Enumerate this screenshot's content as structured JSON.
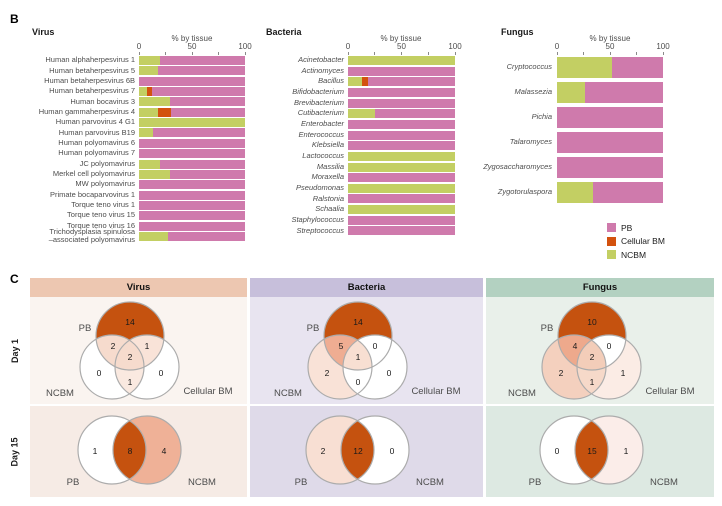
{
  "colors": {
    "PB": "#CF7AAC",
    "Cellular BM": "#D3520E",
    "NCBM": "#C3CF63",
    "venn_orange": "#C5520F",
    "venn_stroke": "#ACACAC"
  },
  "panel_b": {
    "label": "B",
    "legend": {
      "items": [
        {
          "label": "PB",
          "color": "#CF7AAC"
        },
        {
          "label": "Cellular BM",
          "color": "#D3520E"
        },
        {
          "label": "NCBM",
          "color": "#C3CF63"
        }
      ]
    }
  },
  "panel_c": {
    "label": "C",
    "row_labels": [
      "Day 1",
      "Day 15"
    ],
    "columns": [
      {
        "title": "Virus",
        "header_color": "#EDC7B1",
        "day1_bg": "#FAF4F0",
        "day15_bg": "#F6EBE5"
      },
      {
        "title": "Bacteria",
        "header_color": "#C7BFDB",
        "day1_bg": "#E8E4F0",
        "day15_bg": "#DFDAE9"
      },
      {
        "title": "Fungus",
        "header_color": "#B3D1C1",
        "day1_bg": "#E9F0EA",
        "day15_bg": "#DDE9E2"
      }
    ]
  },
  "chart_data": [
    {
      "type": "bar",
      "stacked": true,
      "orientation": "horizontal",
      "title": "Virus",
      "axis_title": "% by tissue",
      "xlim": [
        0,
        100
      ],
      "ticks": [
        "0",
        "50",
        "100"
      ],
      "categories": [
        "Human alphaherpesvirus 1",
        "Human betaherpesvirus 5",
        "Human betaherpesvirus 6B",
        "Human betaherpesvirus 7",
        "Human bocavirus 3",
        "Human gammaherpesvirus 4",
        "Human parvovirus 4 G1",
        "Human parvovirus B19",
        "Human polyomavirus 6",
        "Human polyomavirus 7",
        "JC polyomavirus",
        "Merkel cell polyomavirus",
        "MW polyomavirus",
        "Primate bocaparvovirus 1",
        "Torque teno virus 1",
        "Torque teno virus 15",
        "Torque teno virus 16",
        "Trichodysplasia spinulosa\n–associated polyomavirus"
      ],
      "series": [
        {
          "name": "NCBM",
          "values": [
            20,
            18,
            0,
            8,
            29,
            18,
            100,
            13,
            0,
            0,
            20,
            29,
            0,
            0,
            0,
            0,
            0,
            27
          ]
        },
        {
          "name": "Cellular BM",
          "values": [
            0,
            0,
            0,
            4,
            0,
            12,
            0,
            0,
            0,
            0,
            0,
            0,
            0,
            0,
            0,
            0,
            0,
            0
          ]
        },
        {
          "name": "PB",
          "values": [
            80,
            82,
            100,
            88,
            71,
            70,
            0,
            87,
            100,
            100,
            80,
            71,
            100,
            100,
            100,
            100,
            100,
            73
          ]
        }
      ]
    },
    {
      "type": "bar",
      "stacked": true,
      "orientation": "horizontal",
      "title": "Bacteria",
      "axis_title": "% by tissue",
      "xlim": [
        0,
        100
      ],
      "ticks": [
        "0",
        "50",
        "100"
      ],
      "categories": [
        "Acinetobacter",
        "Actinomyces",
        "Bacillus",
        "Bifidobacterium",
        "Brevibacterium",
        "Cutibacterium",
        "Enterobacter",
        "Enterococcus",
        "Klebsiella",
        "Lactococcus",
        "Massilia",
        "Moraxella",
        "Pseudomonas",
        "Ralstonia",
        "Schaalia",
        "Staphylococcus",
        "Streptococcus"
      ],
      "series": [
        {
          "name": "NCBM",
          "values": [
            100,
            0,
            13,
            0,
            0,
            25,
            0,
            0,
            0,
            100,
            100,
            0,
            100,
            0,
            100,
            0,
            0
          ]
        },
        {
          "name": "Cellular BM",
          "values": [
            0,
            0,
            6,
            0,
            0,
            0,
            0,
            0,
            0,
            0,
            0,
            0,
            0,
            0,
            0,
            0,
            0
          ]
        },
        {
          "name": "PB",
          "values": [
            0,
            100,
            81,
            100,
            100,
            75,
            100,
            100,
            100,
            0,
            0,
            100,
            0,
            100,
            0,
            100,
            100
          ]
        }
      ]
    },
    {
      "type": "bar",
      "stacked": true,
      "orientation": "horizontal",
      "title": "Fungus",
      "axis_title": "% by tissue",
      "xlim": [
        0,
        100
      ],
      "ticks": [
        "0",
        "50",
        "100"
      ],
      "categories": [
        "Cryptococcus",
        "Malassezia",
        "Pichia",
        "Talaromyces",
        "Zygosaccharomyces",
        "Zygotorulaspora"
      ],
      "series": [
        {
          "name": "NCBM",
          "values": [
            52,
            26,
            0,
            0,
            0,
            34
          ]
        },
        {
          "name": "Cellular BM",
          "values": [
            0,
            0,
            0,
            0,
            0,
            0
          ]
        },
        {
          "name": "PB",
          "values": [
            48,
            74,
            100,
            100,
            100,
            66
          ]
        }
      ]
    },
    {
      "type": "venn3",
      "title": "Virus Day 1",
      "sets": [
        "PB",
        "NCBM",
        "Cellular BM"
      ],
      "region_values": {
        "pb_only": 14,
        "pb_ncbm": 2,
        "pb_cbm": 1,
        "center": 2,
        "ncbm_only": 0,
        "ncbm_cbm": 1,
        "cbm_only": 0
      },
      "region_fills": {
        "pb_only": "#C5520F",
        "pb_ncbm": "#F6DBCD",
        "pb_cbm": "#F9E3D8",
        "center": "#F6DBCD",
        "ncbm_only": "#FFFFFF",
        "ncbm_cbm": "#FAE9E0",
        "cbm_only": "#FFFFFF"
      }
    },
    {
      "type": "venn3",
      "title": "Bacteria Day 1",
      "sets": [
        "PB",
        "NCBM",
        "Cellular BM"
      ],
      "region_values": {
        "pb_only": 14,
        "pb_ncbm": 5,
        "pb_cbm": 0,
        "center": 1,
        "ncbm_only": 2,
        "ncbm_cbm": 0,
        "cbm_only": 0
      },
      "region_fills": {
        "pb_only": "#C5520F",
        "pb_ncbm": "#EFAD92",
        "pb_cbm": "#FFFFFF",
        "center": "#F8DFD2",
        "ncbm_only": "#F9E2D7",
        "ncbm_cbm": "#FFFFFF",
        "cbm_only": "#FFFFFF"
      }
    },
    {
      "type": "venn3",
      "title": "Fungus Day 1",
      "sets": [
        "PB",
        "NCBM",
        "Cellular BM"
      ],
      "region_values": {
        "pb_only": 10,
        "pb_ncbm": 4,
        "pb_cbm": 0,
        "center": 2,
        "ncbm_only": 2,
        "ncbm_cbm": 1,
        "cbm_only": 1
      },
      "region_fills": {
        "pb_only": "#C5520F",
        "pb_ncbm": "#EEA98C",
        "pb_cbm": "#FFFFFF",
        "center": "#F3CDB9",
        "ncbm_only": "#F4D0BE",
        "ncbm_cbm": "#F6D9C9",
        "cbm_only": "#FBECE5"
      }
    },
    {
      "type": "venn2",
      "title": "Virus Day 15",
      "sets": [
        "PB",
        "NCBM"
      ],
      "region_values": {
        "left": 1,
        "inter": 8,
        "right": 4
      },
      "region_fills": {
        "left": "#FFFFFF",
        "inter": "#C5520F",
        "right": "#EFB197"
      }
    },
    {
      "type": "venn2",
      "title": "Bacteria Day 15",
      "sets": [
        "PB",
        "NCBM"
      ],
      "region_values": {
        "left": 2,
        "inter": 12,
        "right": 0
      },
      "region_fills": {
        "left": "#F8DFD3",
        "inter": "#C5520F",
        "right": "#FFFFFF"
      }
    },
    {
      "type": "venn2",
      "title": "Fungus Day 15",
      "sets": [
        "PB",
        "NCBM"
      ],
      "region_values": {
        "left": 0,
        "inter": 15,
        "right": 1
      },
      "region_fills": {
        "left": "#FFFFFF",
        "inter": "#C5520F",
        "right": "#FBEDE9"
      }
    }
  ]
}
